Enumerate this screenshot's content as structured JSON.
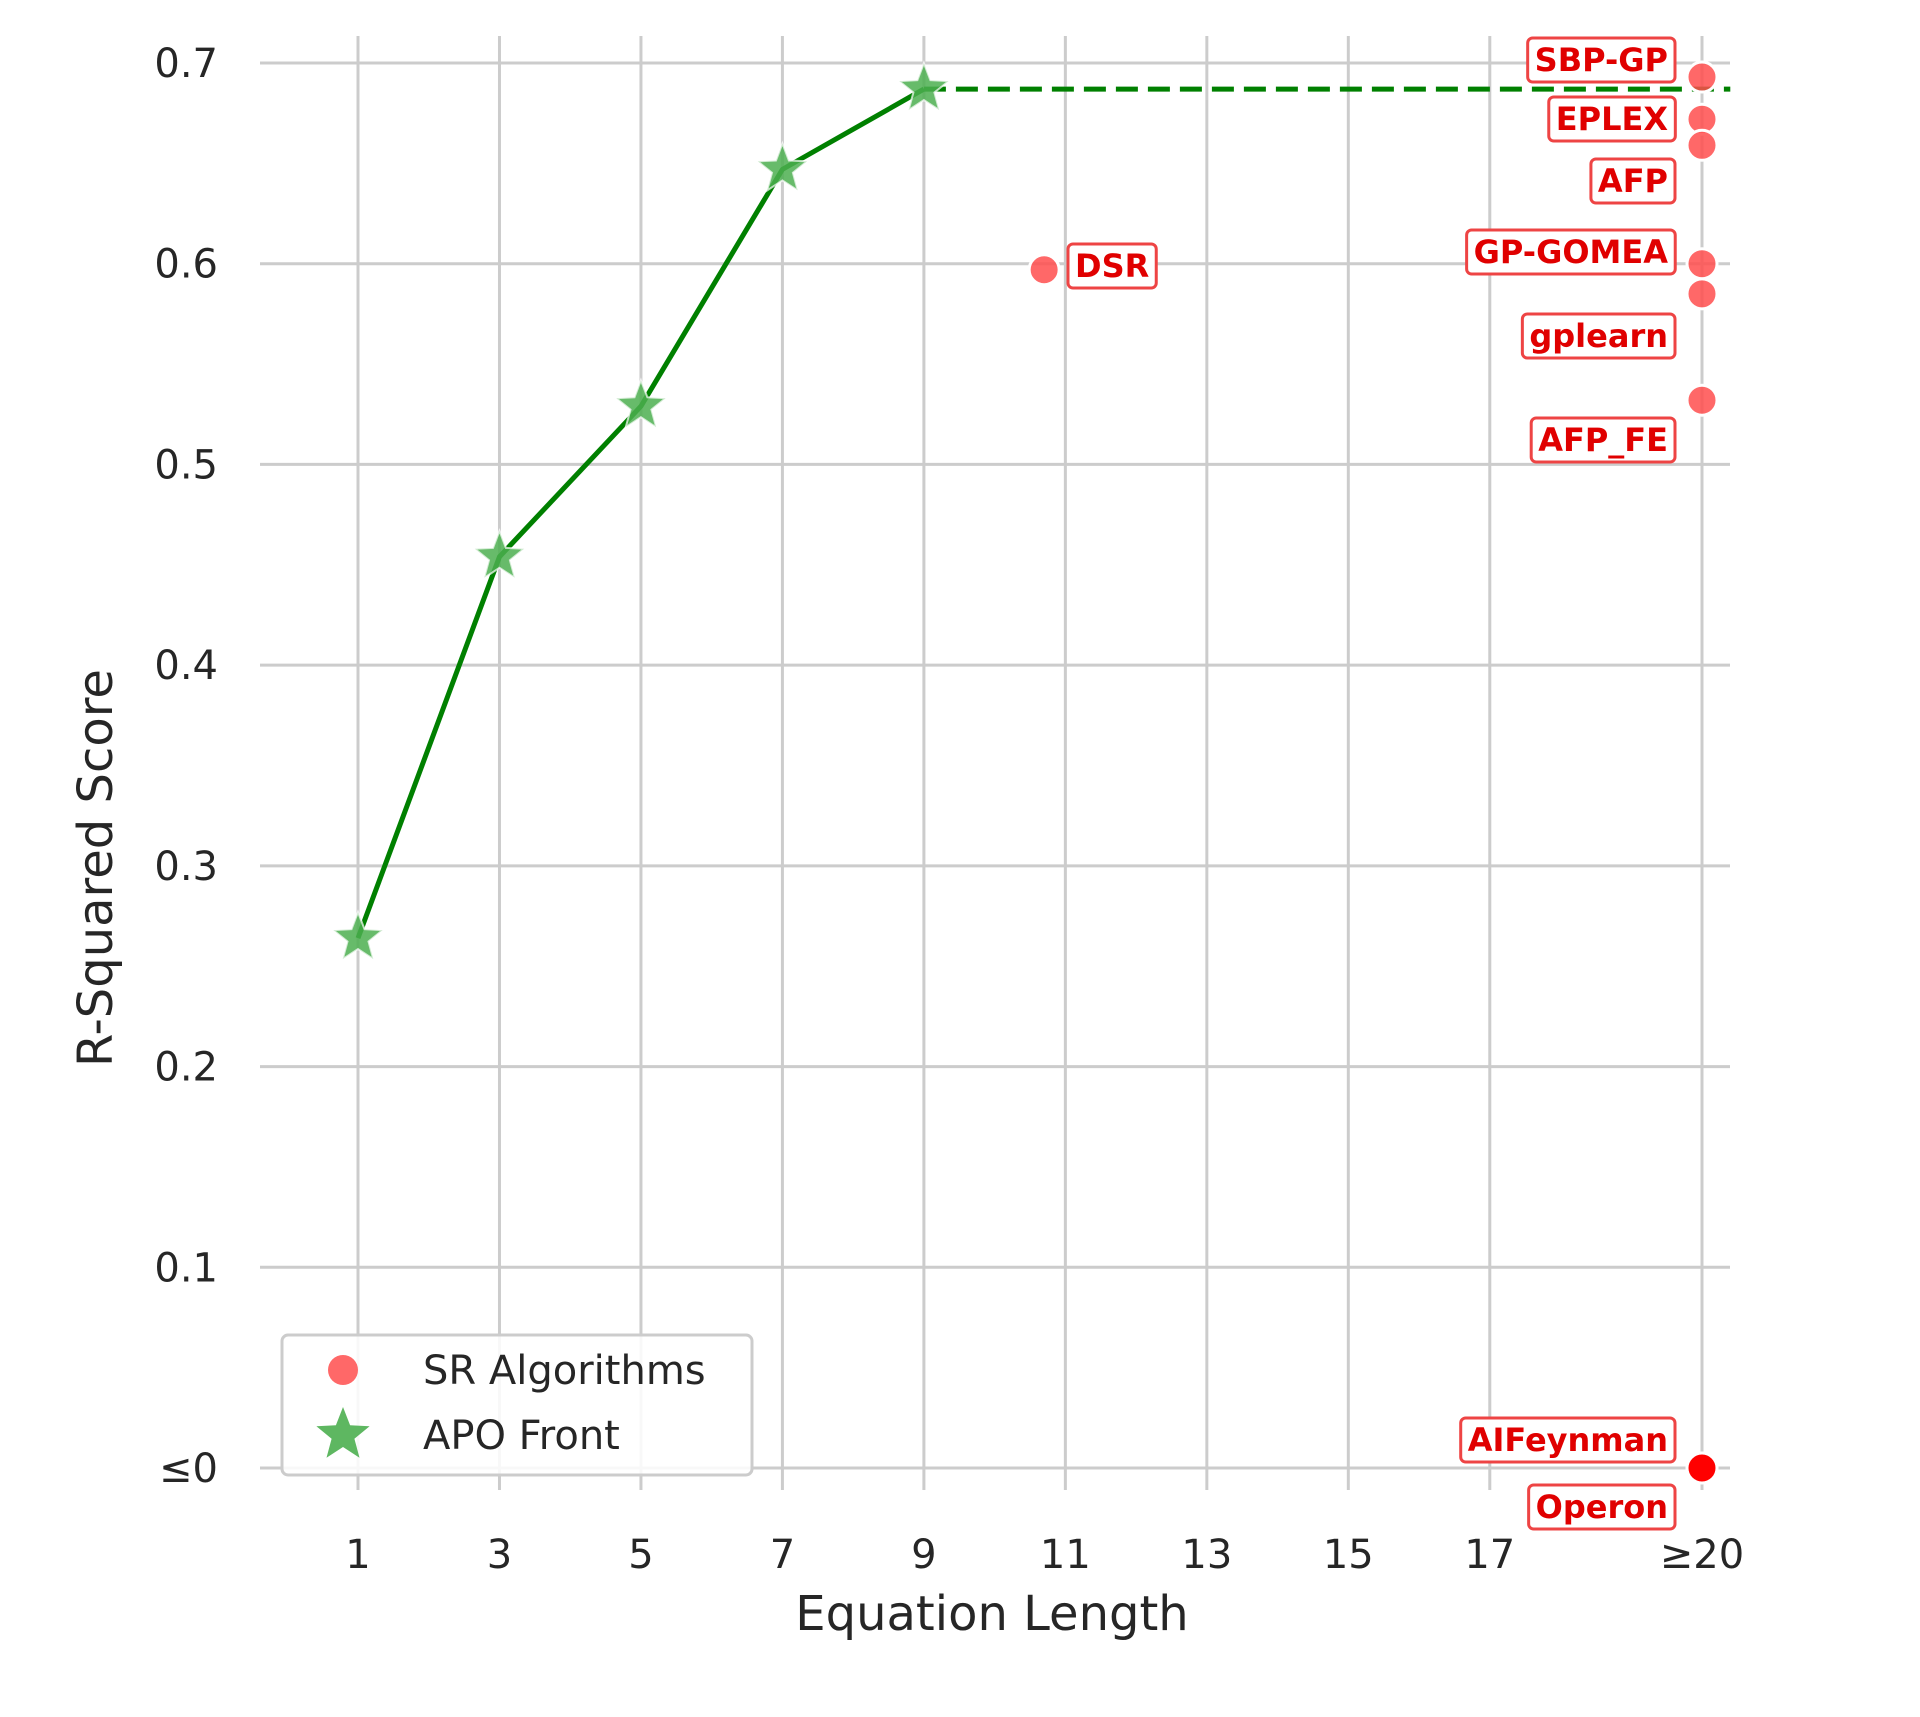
{
  "chart_data": {
    "type": "scatter",
    "xlabel": "Equation Length",
    "ylabel": "R-Squared Score",
    "xlim": [
      0,
      20.5
    ],
    "ylim": [
      -0.04,
      0.72
    ],
    "grid": true,
    "legend_position": "lower-left",
    "x_ticks": [
      {
        "value": 1,
        "label": "1"
      },
      {
        "value": 3,
        "label": "3"
      },
      {
        "value": 5,
        "label": "5"
      },
      {
        "value": 7,
        "label": "7"
      },
      {
        "value": 9,
        "label": "9"
      },
      {
        "value": 11,
        "label": "11"
      },
      {
        "value": 13,
        "label": "13"
      },
      {
        "value": 15,
        "label": "15"
      },
      {
        "value": 17,
        "label": "17"
      },
      {
        "value": 20,
        "label": "≥20"
      }
    ],
    "y_ticks": [
      {
        "value": 0.0,
        "label": "≤0"
      },
      {
        "value": 0.1,
        "label": "0.1"
      },
      {
        "value": 0.2,
        "label": "0.2"
      },
      {
        "value": 0.3,
        "label": "0.3"
      },
      {
        "value": 0.4,
        "label": "0.4"
      },
      {
        "value": 0.5,
        "label": "0.5"
      },
      {
        "value": 0.6,
        "label": "0.6"
      },
      {
        "value": 0.7,
        "label": "0.7"
      }
    ],
    "series": [
      {
        "name": "APO Front",
        "kind": "line-star",
        "color": "#008000",
        "marker_color": "#4caf50",
        "x": [
          1,
          3,
          5,
          7,
          9
        ],
        "y": [
          0.264,
          0.454,
          0.529,
          0.647,
          0.687
        ],
        "extension": {
          "style": "dashed",
          "from_x": 9,
          "to_x": 20.4,
          "y": 0.687
        }
      },
      {
        "name": "SR Algorithms",
        "kind": "scatter",
        "color": "#ff4d4d",
        "points": [
          {
            "label": "SBP-GP",
            "x": 20,
            "y": 0.693
          },
          {
            "label": "EPLEX",
            "x": 20,
            "y": 0.672
          },
          {
            "label": "AFP",
            "x": 20,
            "y": 0.659
          },
          {
            "label": "GP-GOMEA",
            "x": 20,
            "y": 0.6
          },
          {
            "label": "gplearn",
            "x": 20,
            "y": 0.585
          },
          {
            "label": "AFP_FE",
            "x": 20,
            "y": 0.532
          },
          {
            "label": "DSR",
            "x": 10.7,
            "y": 0.597
          },
          {
            "label": "AIFeynman",
            "x": 20,
            "y": 0.0
          },
          {
            "label": "Operon",
            "x": 20,
            "y": 0.0
          }
        ]
      }
    ],
    "annotations": [
      {
        "text": "SBP-GP",
        "x": 20,
        "y": 0.693,
        "ref": "SBP-GP"
      },
      {
        "text": "EPLEX",
        "x": 20,
        "y": 0.672,
        "ref": "EPLEX"
      },
      {
        "text": "AFP",
        "x": 20,
        "y": 0.659,
        "ref": "AFP"
      },
      {
        "text": "GP-GOMEA",
        "x": 20,
        "y": 0.6,
        "ref": "GP-GOMEA"
      },
      {
        "text": "gplearn",
        "x": 20,
        "y": 0.585,
        "ref": "gplearn"
      },
      {
        "text": "AFP_FE",
        "x": 20,
        "y": 0.532,
        "ref": "AFP_FE"
      },
      {
        "text": "DSR",
        "x": 10.7,
        "y": 0.597,
        "ref": "DSR"
      },
      {
        "text": "AIFeynman",
        "x": 20,
        "y": 0.0,
        "ref": "AIFeynman"
      },
      {
        "text": "Operon",
        "x": 20,
        "y": 0.0,
        "ref": "Operon"
      }
    ],
    "legend": [
      {
        "label": "SR Algorithms",
        "marker": "circle",
        "color": "#ff4d4d"
      },
      {
        "label": "APO Front",
        "marker": "star",
        "color": "#4caf50"
      }
    ]
  }
}
